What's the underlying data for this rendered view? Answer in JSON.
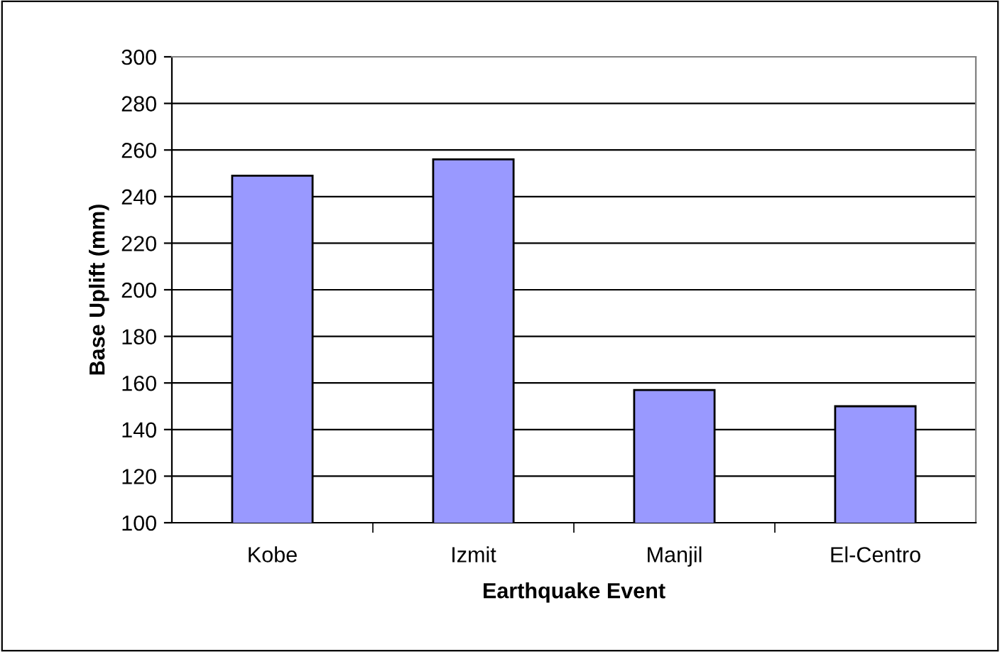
{
  "chart_data": {
    "type": "bar",
    "xlabel": "Earthquake Event",
    "ylabel": "Base Uplift (mm)",
    "categories": [
      "Kobe",
      "Izmit",
      "Manjil",
      "El-Centro"
    ],
    "values": [
      249,
      256,
      157,
      150
    ],
    "color": "#9999ff",
    "ylim": [
      100,
      300
    ],
    "yticks": [
      100,
      120,
      140,
      160,
      180,
      200,
      220,
      240,
      260,
      280,
      300
    ],
    "grid": "y"
  }
}
